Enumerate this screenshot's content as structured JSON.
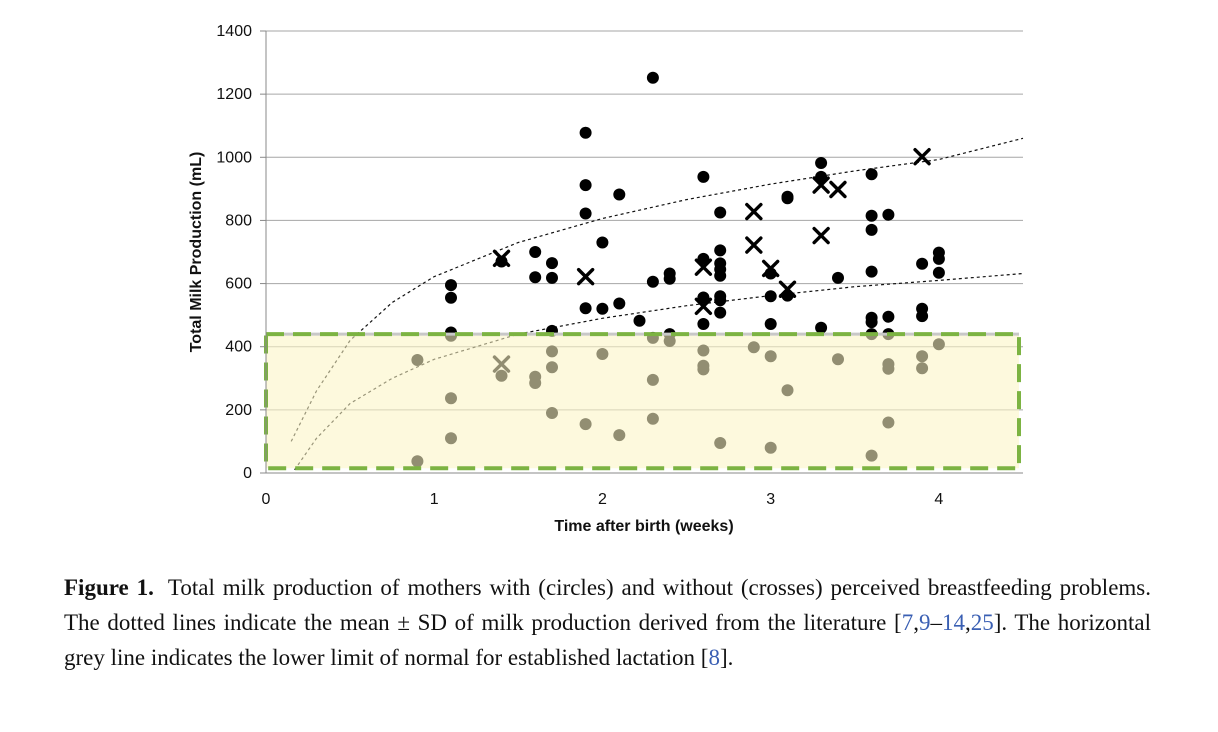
{
  "chart_data": {
    "type": "scatter",
    "xlabel": "Time after birth (weeks)",
    "ylabel": "Total Milk Production (mL)",
    "xlim": [
      0,
      4.5
    ],
    "ylim": [
      0,
      1400
    ],
    "x_ticks": [
      "0",
      "1",
      "2",
      "3",
      "4"
    ],
    "y_ticks": [
      "0",
      "200",
      "400",
      "600",
      "800",
      "1000",
      "1200",
      "1400"
    ],
    "grid": "horizontal",
    "highlight_region": {
      "x": [
        0,
        4.5
      ],
      "y": [
        15,
        440
      ],
      "fill": "#fbf5c4",
      "border": "#7cb342",
      "border_style": "dashed"
    },
    "lower_limit_line": {
      "y": 440,
      "color": "#c8c8c8"
    },
    "series": [
      {
        "marker": "circle",
        "points": [
          [
            1.1,
            595
          ],
          [
            1.1,
            555
          ],
          [
            1.1,
            445
          ],
          [
            1.4,
            670
          ],
          [
            1.6,
            700
          ],
          [
            1.6,
            620
          ],
          [
            1.7,
            665
          ],
          [
            1.7,
            618
          ],
          [
            1.7,
            450
          ],
          [
            1.9,
            1078
          ],
          [
            1.9,
            912
          ],
          [
            1.9,
            822
          ],
          [
            1.9,
            522
          ],
          [
            2.0,
            730
          ],
          [
            2.0,
            520
          ],
          [
            2.1,
            882
          ],
          [
            2.1,
            537
          ],
          [
            2.3,
            1252
          ],
          [
            2.3,
            606
          ],
          [
            2.4,
            632
          ],
          [
            2.4,
            615
          ],
          [
            2.4,
            440
          ],
          [
            2.22,
            482
          ],
          [
            2.6,
            938
          ],
          [
            2.6,
            678
          ],
          [
            2.6,
            556
          ],
          [
            2.6,
            472
          ],
          [
            2.7,
            825
          ],
          [
            2.7,
            705
          ],
          [
            2.7,
            664
          ],
          [
            2.7,
            645
          ],
          [
            2.7,
            625
          ],
          [
            2.7,
            560
          ],
          [
            2.7,
            547
          ],
          [
            2.7,
            508
          ],
          [
            3.0,
            632
          ],
          [
            3.0,
            560
          ],
          [
            3.0,
            472
          ],
          [
            3.1,
            875
          ],
          [
            3.1,
            870
          ],
          [
            3.1,
            562
          ],
          [
            3.3,
            982
          ],
          [
            3.3,
            938
          ],
          [
            3.3,
            460
          ],
          [
            3.4,
            618
          ],
          [
            3.6,
            946
          ],
          [
            3.6,
            815
          ],
          [
            3.6,
            770
          ],
          [
            3.6,
            638
          ],
          [
            3.6,
            492
          ],
          [
            3.6,
            478
          ],
          [
            3.6,
            440
          ],
          [
            3.7,
            818
          ],
          [
            3.7,
            495
          ],
          [
            3.7,
            440
          ],
          [
            3.9,
            663
          ],
          [
            3.9,
            520
          ],
          [
            3.9,
            497
          ],
          [
            4.0,
            698
          ],
          [
            4.0,
            678
          ],
          [
            4.0,
            634
          ],
          [
            0.9,
            358
          ],
          [
            0.9,
            37
          ],
          [
            1.1,
            435
          ],
          [
            1.1,
            237
          ],
          [
            1.1,
            110
          ],
          [
            1.4,
            308
          ],
          [
            1.6,
            305
          ],
          [
            1.6,
            285
          ],
          [
            1.7,
            385
          ],
          [
            1.7,
            335
          ],
          [
            1.7,
            190
          ],
          [
            1.9,
            155
          ],
          [
            2.0,
            377
          ],
          [
            2.1,
            120
          ],
          [
            2.3,
            428
          ],
          [
            2.3,
            295
          ],
          [
            2.3,
            172
          ],
          [
            2.4,
            418
          ],
          [
            2.6,
            388
          ],
          [
            2.6,
            340
          ],
          [
            2.6,
            328
          ],
          [
            2.7,
            95
          ],
          [
            2.9,
            398
          ],
          [
            3.0,
            370
          ],
          [
            3.0,
            80
          ],
          [
            3.1,
            262
          ],
          [
            3.4,
            360
          ],
          [
            3.6,
            55
          ],
          [
            3.7,
            345
          ],
          [
            3.7,
            330
          ],
          [
            3.7,
            160
          ],
          [
            3.9,
            370
          ],
          [
            3.9,
            332
          ],
          [
            4.0,
            408
          ]
        ]
      },
      {
        "marker": "cross",
        "points": [
          [
            1.4,
            680
          ],
          [
            1.4,
            345
          ],
          [
            1.9,
            622
          ],
          [
            2.6,
            652
          ],
          [
            2.6,
            528
          ],
          [
            2.9,
            828
          ],
          [
            2.9,
            722
          ],
          [
            3.0,
            648
          ],
          [
            3.1,
            582
          ],
          [
            3.3,
            912
          ],
          [
            3.3,
            752
          ],
          [
            3.4,
            898
          ],
          [
            3.9,
            1002
          ]
        ]
      }
    ],
    "reference_curves": [
      {
        "style": "dotted",
        "points": [
          [
            0.15,
            100
          ],
          [
            0.3,
            260
          ],
          [
            0.5,
            420
          ],
          [
            0.75,
            540
          ],
          [
            1,
            622
          ],
          [
            1.5,
            730
          ],
          [
            2,
            806
          ],
          [
            2.5,
            866
          ],
          [
            3,
            915
          ],
          [
            3.5,
            957
          ],
          [
            4,
            993
          ],
          [
            4.5,
            1060
          ]
        ]
      },
      {
        "style": "dotted",
        "points": [
          [
            0.17,
            10
          ],
          [
            0.3,
            110
          ],
          [
            0.5,
            220
          ],
          [
            0.75,
            300
          ],
          [
            1,
            360
          ],
          [
            1.5,
            440
          ],
          [
            2,
            490
          ],
          [
            2.5,
            530
          ],
          [
            3,
            562
          ],
          [
            3.5,
            590
          ],
          [
            4,
            610
          ],
          [
            4.5,
            632
          ]
        ]
      }
    ]
  },
  "caption": {
    "label": "Figure 1.",
    "text_1": "Total milk production of mothers with (circles) and without (crosses) perceived breastfeeding problems. The dotted lines indicate the mean ± SD of milk production derived from the literature [",
    "ref_1": "7",
    "sep_1": ",",
    "ref_2": "9",
    "sep_2": "–",
    "ref_3": "14",
    "sep_3": ",",
    "ref_4": "25",
    "text_2": "]. The horizontal grey line indicates the lower limit of normal for established lactation [",
    "ref_5": "8",
    "text_3": "]."
  }
}
